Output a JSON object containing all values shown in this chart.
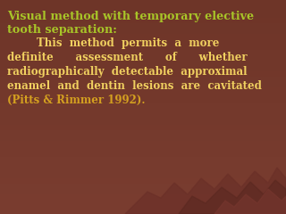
{
  "bg_color": "#7a3d30",
  "title_line1": "Visual method with temporary elective",
  "title_line2": "tooth separation:",
  "title_color": "#a8c428",
  "body_color": "#f0d060",
  "citation_color": "#d4a020",
  "body_lines": [
    "        This method permits  a  more",
    "definite      assessment      of      whether",
    "radiographically  detectable  approximal",
    "enamel  and  dentin  lesions  are  cavitated",
    "(Pitts & Rimmer 1992)."
  ],
  "figsize": [
    3.2,
    2.4
  ],
  "dpi": 100,
  "mountain_color1": "#6b3028",
  "mountain_color2": "#5a2820",
  "mountain_color3": "#7a3830"
}
